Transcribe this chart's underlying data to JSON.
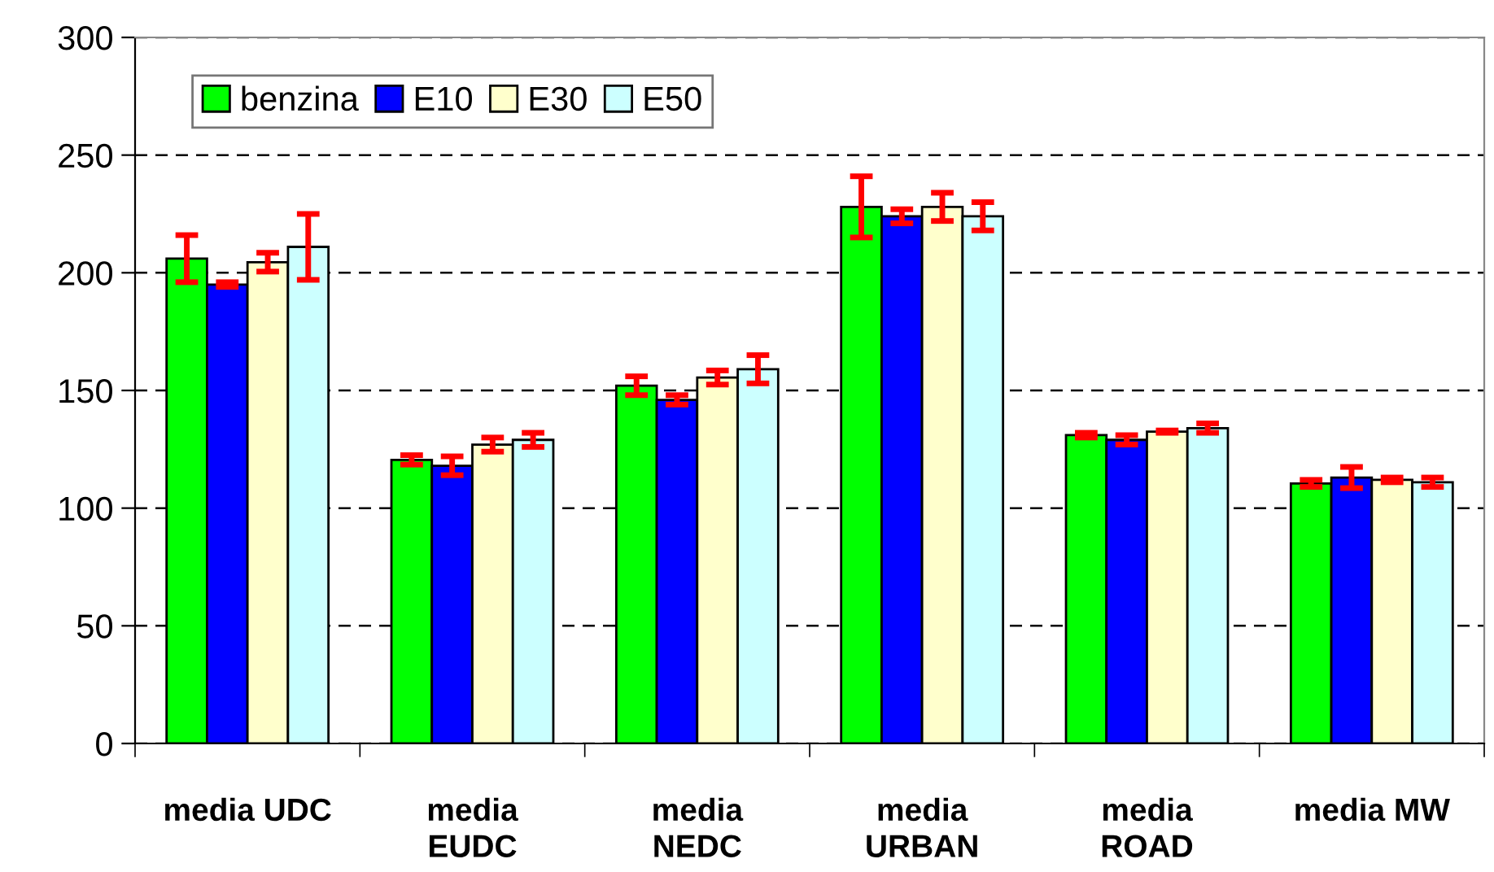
{
  "chart_data": {
    "type": "bar",
    "categories": [
      "media UDC",
      "media\nEUDC",
      "media\nNEDC",
      "media\nURBAN",
      "media\nROAD",
      "media MW"
    ],
    "series": [
      {
        "name": "benzina",
        "color": "#00ff00",
        "values": [
          206,
          120.5,
          152,
          228,
          131,
          110.5
        ],
        "errors": [
          10,
          2,
          4,
          13,
          1,
          1.5
        ]
      },
      {
        "name": "E10",
        "color": "#0000ff",
        "values": [
          195,
          118,
          146,
          224,
          129,
          113
        ],
        "errors": [
          1,
          4,
          2,
          3,
          2,
          4.5
        ]
      },
      {
        "name": "E30",
        "color": "#ffffcc",
        "values": [
          204.5,
          127,
          155.5,
          228,
          132.5,
          112
        ],
        "errors": [
          4,
          3,
          3,
          6,
          0.5,
          1
        ]
      },
      {
        "name": "E50",
        "color": "#ccffff",
        "values": [
          211,
          129,
          159,
          224,
          134,
          111
        ],
        "errors": [
          14,
          3,
          6,
          6,
          2,
          2
        ]
      }
    ],
    "ylim": [
      0,
      300
    ],
    "yticks": [
      0,
      50,
      100,
      150,
      200,
      250,
      300
    ],
    "grid": "y",
    "legend": "top left"
  }
}
